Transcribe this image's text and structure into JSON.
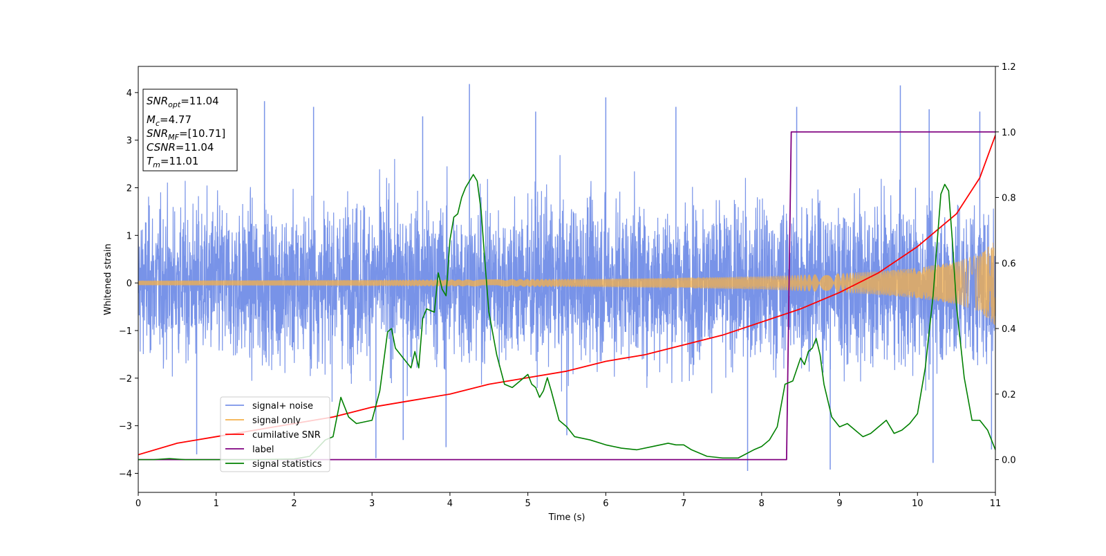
{
  "chart_data": {
    "type": "line",
    "xlabel": "Time (s)",
    "ylabel": "Whitened strain",
    "xlim": [
      0,
      11
    ],
    "ylim": [
      -4.4,
      4.55
    ],
    "y2lim": [
      -0.1,
      1.2
    ],
    "x_ticks": [
      "0",
      "1",
      "2",
      "3",
      "4",
      "5",
      "6",
      "7",
      "8",
      "9",
      "10",
      "11"
    ],
    "y_ticks": [
      "4",
      "3",
      "2",
      "1",
      "0",
      "−1",
      "−2",
      "−3",
      "−4"
    ],
    "y2_ticks": [
      "1.2",
      "1.0",
      "0.8",
      "0.6",
      "0.4",
      "0.2",
      "0.0"
    ],
    "grid": false,
    "legend_position": "lower-left",
    "info_box": {
      "snr_opt": {
        "base": "SNR",
        "sub": "opt",
        "value": "=11.04"
      },
      "mc": {
        "base": "M",
        "sub": "c",
        "value": "=4.77"
      },
      "snr_mf": {
        "base": "SNR",
        "sub": "MF",
        "value": "=[10.71]"
      },
      "csnr": {
        "base": "CSNR",
        "value": "=11.04"
      },
      "tm": {
        "base": "T",
        "sub": "m",
        "value": "=11.01"
      }
    },
    "series": [
      {
        "name": "signal+ noise",
        "color": "#7893e8",
        "axis": "left",
        "description_of_values": "noisy whitened strain, roughly symmetric about 0",
        "envelope": {
          "x": [
            0,
            1,
            2,
            3,
            4,
            5,
            6,
            7,
            8,
            9,
            10,
            11
          ],
          "typical_max": [
            2.3,
            2.5,
            2.4,
            2.6,
            2.5,
            2.6,
            2.6,
            2.5,
            2.5,
            2.6,
            2.5,
            2.5
          ],
          "typical_min": [
            -2.3,
            -2.5,
            -2.5,
            -2.4,
            -2.5,
            -2.6,
            -2.5,
            -2.5,
            -2.6,
            -2.5,
            -2.6,
            -2.6
          ]
        },
        "spikes": [
          {
            "x": 0.75,
            "y": -3.6
          },
          {
            "x": 1.62,
            "y": 3.82
          },
          {
            "x": 2.25,
            "y": 3.7
          },
          {
            "x": 3.05,
            "y": -3.68
          },
          {
            "x": 3.4,
            "y": -3.3
          },
          {
            "x": 3.65,
            "y": 3.5
          },
          {
            "x": 3.95,
            "y": -3.45
          },
          {
            "x": 4.25,
            "y": 4.18
          },
          {
            "x": 5.1,
            "y": 3.6
          },
          {
            "x": 5.5,
            "y": -3.2
          },
          {
            "x": 6.0,
            "y": 3.9
          },
          {
            "x": 6.9,
            "y": 3.7
          },
          {
            "x": 7.82,
            "y": -3.95
          },
          {
            "x": 8.45,
            "y": 3.7
          },
          {
            "x": 8.88,
            "y": -3.92
          },
          {
            "x": 9.78,
            "y": 4.15
          },
          {
            "x": 10.15,
            "y": 3.65
          },
          {
            "x": 10.2,
            "y": -3.78
          },
          {
            "x": 10.8,
            "y": 3.6
          },
          {
            "x": 10.95,
            "y": -3.5
          }
        ]
      },
      {
        "name": "signal only",
        "color": "#f5b04a",
        "axis": "left",
        "description_of_values": "chirp waveform whose amplitude grows towards merger",
        "amplitude_envelope": {
          "x": [
            0,
            2,
            4,
            6,
            7,
            8,
            9,
            9.5,
            10,
            10.5,
            10.8,
            11
          ],
          "amplitude": [
            0.05,
            0.06,
            0.07,
            0.09,
            0.11,
            0.14,
            0.2,
            0.25,
            0.32,
            0.45,
            0.6,
            0.9
          ]
        }
      },
      {
        "name": "cumilative SNR",
        "color": "#ff0000",
        "axis": "right",
        "x": [
          0,
          0.5,
          1,
          1.5,
          2,
          2.5,
          3,
          3.5,
          4,
          4.5,
          5,
          5.5,
          6,
          6.5,
          7,
          7.5,
          8,
          8.5,
          9,
          9.5,
          10,
          10.5,
          10.8,
          11
        ],
        "y": [
          0.015,
          0.05,
          0.07,
          0.09,
          0.11,
          0.13,
          0.16,
          0.18,
          0.2,
          0.23,
          0.25,
          0.27,
          0.3,
          0.32,
          0.35,
          0.38,
          0.42,
          0.46,
          0.51,
          0.57,
          0.65,
          0.75,
          0.86,
          0.99
        ]
      },
      {
        "name": "label",
        "color": "#800080",
        "axis": "right",
        "x": [
          0,
          8.32,
          8.38,
          11
        ],
        "y": [
          0.0,
          0.0,
          1.0,
          1.0
        ]
      },
      {
        "name": "signal statistics",
        "color": "#008000",
        "axis": "right",
        "x": [
          0,
          0.2,
          0.4,
          0.6,
          1,
          1.5,
          2,
          2.2,
          2.4,
          2.5,
          2.6,
          2.7,
          2.8,
          2.9,
          3.0,
          3.1,
          3.2,
          3.25,
          3.3,
          3.4,
          3.5,
          3.55,
          3.6,
          3.65,
          3.7,
          3.8,
          3.85,
          3.9,
          3.95,
          4.0,
          4.05,
          4.1,
          4.15,
          4.2,
          4.25,
          4.3,
          4.35,
          4.4,
          4.45,
          4.5,
          4.6,
          4.7,
          4.8,
          4.9,
          5.0,
          5.05,
          5.1,
          5.15,
          5.2,
          5.25,
          5.3,
          5.4,
          5.5,
          5.6,
          5.8,
          6.0,
          6.2,
          6.4,
          6.6,
          6.8,
          6.9,
          7.0,
          7.1,
          7.3,
          7.5,
          7.7,
          7.9,
          8.0,
          8.1,
          8.2,
          8.3,
          8.4,
          8.5,
          8.55,
          8.6,
          8.65,
          8.7,
          8.75,
          8.8,
          8.9,
          9.0,
          9.1,
          9.2,
          9.3,
          9.4,
          9.5,
          9.6,
          9.7,
          9.8,
          9.9,
          10.0,
          10.1,
          10.2,
          10.3,
          10.35,
          10.4,
          10.45,
          10.5,
          10.6,
          10.7,
          10.8,
          10.9,
          11.0
        ],
        "y": [
          0.0,
          0.0,
          0.003,
          0.0,
          0.0,
          0.0,
          0.002,
          0.01,
          0.06,
          0.07,
          0.19,
          0.13,
          0.11,
          0.115,
          0.12,
          0.21,
          0.39,
          0.4,
          0.34,
          0.31,
          0.28,
          0.33,
          0.28,
          0.43,
          0.46,
          0.45,
          0.57,
          0.52,
          0.5,
          0.67,
          0.74,
          0.75,
          0.8,
          0.83,
          0.85,
          0.87,
          0.85,
          0.76,
          0.6,
          0.45,
          0.32,
          0.23,
          0.22,
          0.24,
          0.26,
          0.23,
          0.22,
          0.19,
          0.21,
          0.25,
          0.21,
          0.12,
          0.1,
          0.07,
          0.06,
          0.045,
          0.035,
          0.03,
          0.04,
          0.05,
          0.045,
          0.045,
          0.03,
          0.01,
          0.005,
          0.005,
          0.03,
          0.04,
          0.06,
          0.1,
          0.23,
          0.24,
          0.31,
          0.29,
          0.33,
          0.34,
          0.37,
          0.32,
          0.23,
          0.13,
          0.1,
          0.11,
          0.09,
          0.07,
          0.08,
          0.1,
          0.12,
          0.08,
          0.09,
          0.11,
          0.14,
          0.28,
          0.5,
          0.81,
          0.84,
          0.82,
          0.66,
          0.47,
          0.25,
          0.12,
          0.12,
          0.09,
          0.03
        ]
      }
    ]
  }
}
